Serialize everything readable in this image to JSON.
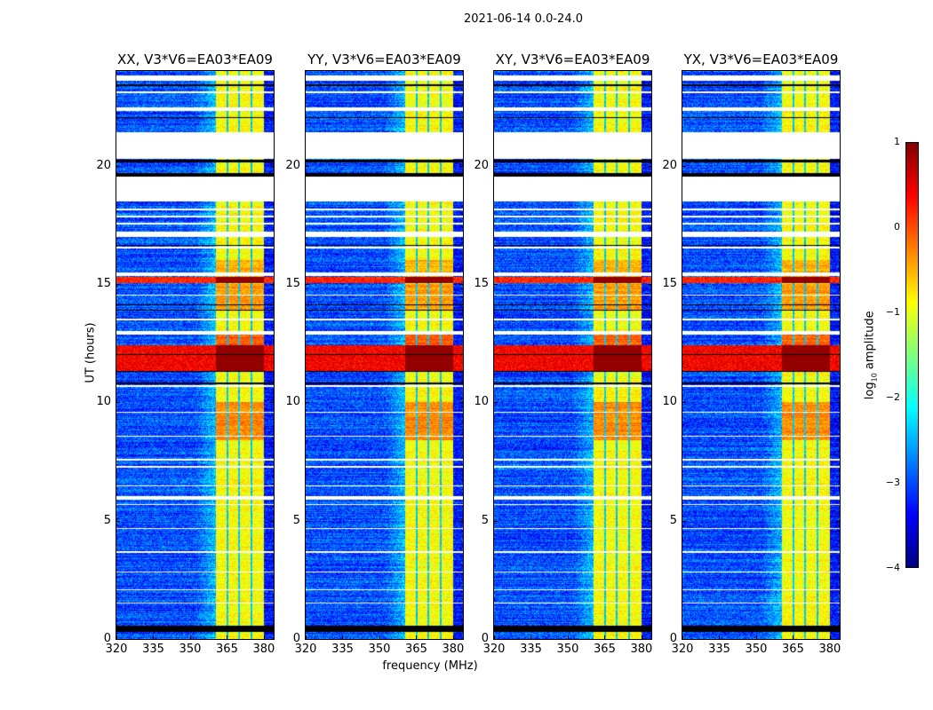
{
  "figure": {
    "suptitle": "2021-06-14 0.0-24.0",
    "xlabel": "frequency (MHz)",
    "ylabel": "UT (hours)"
  },
  "colorbar": {
    "label_prefix": "log",
    "label_sub": "10",
    "label_suffix": " amplitude",
    "ticks": [
      "1",
      "0",
      "−1",
      "−2",
      "−3",
      "−4"
    ],
    "tick_values": [
      1,
      0,
      -1,
      -2,
      -3,
      -4
    ],
    "colormap": "jet",
    "clim": [
      -4,
      1
    ]
  },
  "chart_data": {
    "type": "heatmap",
    "title": "2021-06-14 0.0-24.0",
    "xlabel": "frequency (MHz)",
    "ylabel": "UT (hours)",
    "xlim": [
      320,
      384
    ],
    "ylim": [
      0,
      24
    ],
    "xticks": [
      "320",
      "335",
      "350",
      "365",
      "380"
    ],
    "xtick_values": [
      320,
      335,
      350,
      365,
      380
    ],
    "yticks": [
      "0",
      "5",
      "10",
      "15",
      "20"
    ],
    "ytick_values": [
      0,
      5,
      10,
      15,
      20
    ],
    "clim": [
      -4,
      1
    ],
    "panels": [
      {
        "title": "XX, V3*V6=EA03*EA09",
        "seed": 11
      },
      {
        "title": "YY, V3*V6=EA03*EA09",
        "seed": 23
      },
      {
        "title": "XY, V3*V6=EA03*EA09",
        "seed": 37
      },
      {
        "title": "YX, V3*V6=EA03*EA09",
        "seed": 51
      }
    ],
    "background_level": -3.0,
    "rfi_band_mhz": [
      360.4,
      380.0
    ],
    "rfi_level": -0.9,
    "rfi_channel_gaps_mhz": [
      365.1,
      369.8,
      374.9
    ],
    "strong_intervals_hours": [
      [
        11.3,
        12.4,
        0.4
      ],
      [
        15.05,
        15.3,
        0.2
      ]
    ],
    "band_boost_intervals_hours": [
      [
        8.4,
        10.0,
        0.6
      ],
      [
        12.4,
        13.0,
        0.8
      ],
      [
        13.9,
        15.0,
        0.5
      ],
      [
        15.3,
        16.0,
        0.4
      ]
    ],
    "flagged_intervals_hours": [
      [
        23.6,
        23.8
      ],
      [
        23.05,
        23.15
      ],
      [
        22.3,
        22.45
      ],
      [
        20.3,
        21.4
      ],
      [
        18.5,
        19.55
      ],
      [
        18.1,
        18.17
      ],
      [
        17.8,
        17.87
      ],
      [
        17.5,
        17.57
      ],
      [
        17.0,
        17.2
      ],
      [
        16.5,
        16.57
      ],
      [
        15.35,
        15.5
      ],
      [
        14.5,
        14.56
      ],
      [
        13.45,
        13.52
      ],
      [
        12.85,
        13.0
      ],
      [
        10.65,
        10.72
      ],
      [
        9.55,
        9.6
      ],
      [
        8.55,
        8.6
      ],
      [
        7.55,
        7.6
      ],
      [
        7.25,
        7.3
      ],
      [
        6.45,
        6.5
      ],
      [
        5.9,
        6.05
      ],
      [
        5.65,
        5.7
      ],
      [
        4.65,
        4.7
      ],
      [
        3.65,
        3.7
      ],
      [
        2.8,
        2.85
      ],
      [
        2.05,
        2.1
      ],
      [
        1.5,
        1.55
      ]
    ],
    "black_intervals_hours": [
      [
        20.15,
        20.25
      ],
      [
        19.55,
        19.68
      ],
      [
        0.3,
        0.55
      ],
      [
        15.43,
        15.47
      ],
      [
        14.1,
        14.15
      ],
      [
        12.0,
        12.04
      ],
      [
        11.28,
        11.32
      ],
      [
        10.78,
        10.82
      ],
      [
        13.88,
        13.92
      ],
      [
        16.6,
        16.64
      ],
      [
        23.38,
        23.42
      ],
      [
        22.0,
        22.04
      ]
    ]
  }
}
